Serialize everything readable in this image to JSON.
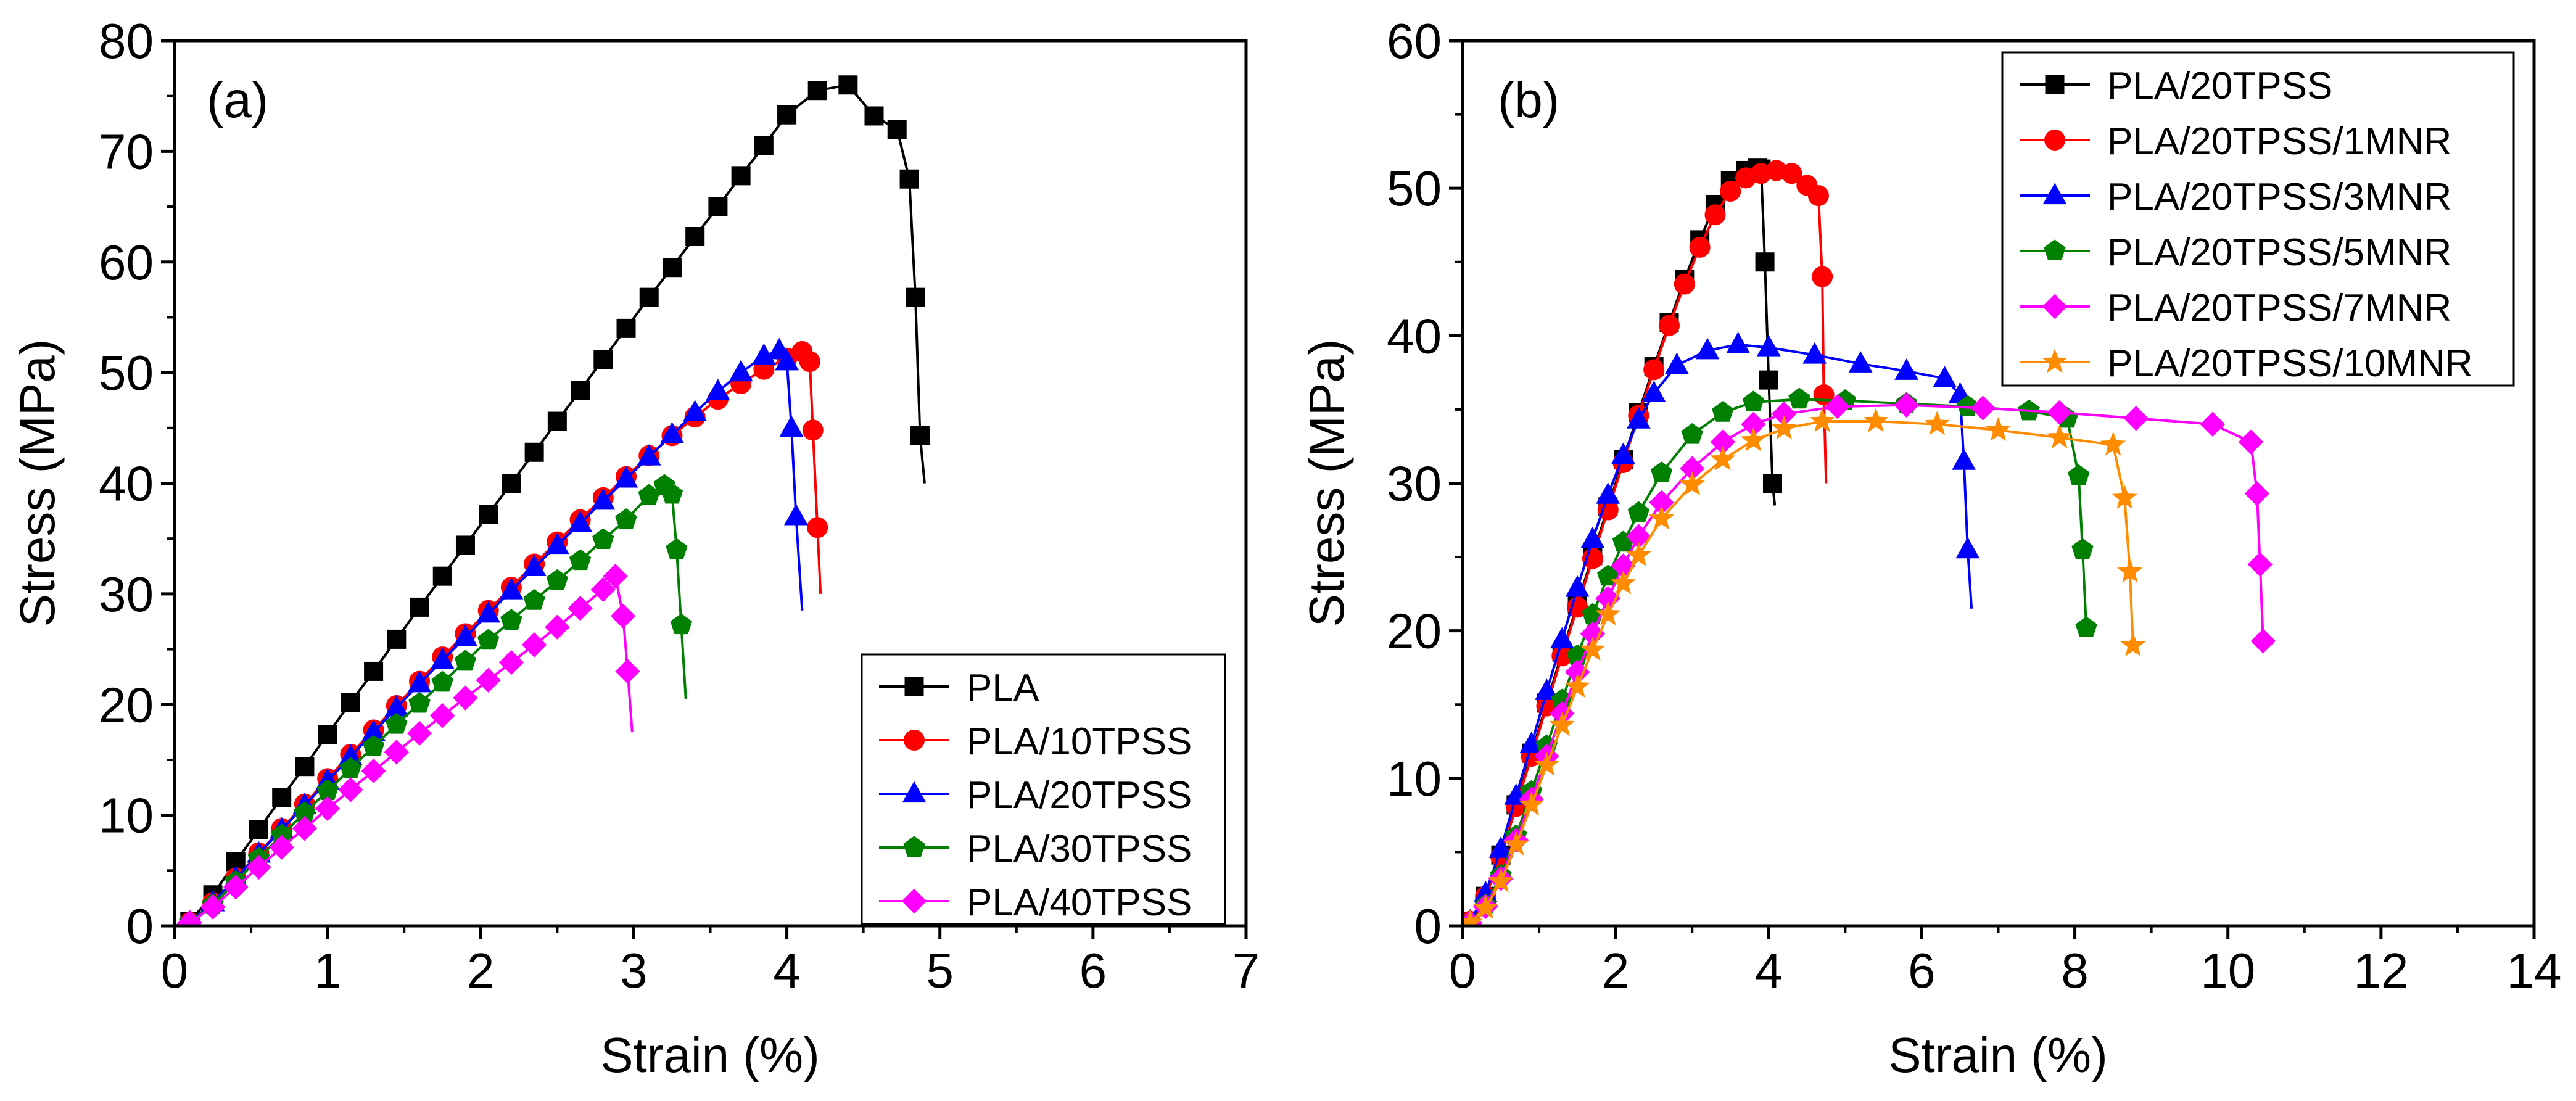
{
  "chart_data": [
    {
      "type": "line",
      "panel_label": "(a)",
      "xlabel": "Strain (%)",
      "ylabel": "Stress (MPa)",
      "xlim": [
        0,
        7
      ],
      "ylim": [
        0,
        80
      ],
      "xticks": [
        0,
        1,
        2,
        3,
        4,
        5,
        6,
        7
      ],
      "yticks": [
        0,
        10,
        20,
        30,
        40,
        50,
        60,
        70,
        80
      ],
      "legend_position": "bottom-right",
      "series": [
        {
          "name": "PLA",
          "color": "#000000",
          "marker": "square",
          "x": [
            0,
            0.1,
            0.25,
            0.4,
            0.55,
            0.7,
            0.85,
            1.0,
            1.15,
            1.3,
            1.45,
            1.6,
            1.75,
            1.9,
            2.05,
            2.2,
            2.35,
            2.5,
            2.65,
            2.8,
            2.95,
            3.1,
            3.25,
            3.4,
            3.55,
            3.7,
            3.85,
            4.0,
            4.2,
            4.4,
            4.57,
            4.72,
            4.8,
            4.84,
            4.87,
            4.9
          ],
          "y": [
            0,
            0.4,
            2.8,
            5.8,
            8.7,
            11.6,
            14.4,
            17.3,
            20.2,
            23.0,
            25.9,
            28.8,
            31.6,
            34.4,
            37.2,
            40.0,
            42.8,
            45.6,
            48.4,
            51.2,
            54.0,
            56.8,
            59.5,
            62.3,
            65.0,
            67.8,
            70.5,
            73.3,
            75.5,
            76.0,
            73.2,
            72.0,
            67.5,
            56.8,
            44.3,
            40.0
          ]
        },
        {
          "name": "PLA/10TPSS",
          "color": "#ff0000",
          "marker": "circle",
          "x": [
            0,
            0.1,
            0.25,
            0.4,
            0.55,
            0.7,
            0.85,
            1.0,
            1.15,
            1.3,
            1.45,
            1.6,
            1.75,
            1.9,
            2.05,
            2.2,
            2.35,
            2.5,
            2.65,
            2.8,
            2.95,
            3.1,
            3.25,
            3.4,
            3.55,
            3.7,
            3.85,
            4.0,
            4.1,
            4.15,
            4.17,
            4.2,
            4.22
          ],
          "y": [
            0,
            0.3,
            2.1,
            4.3,
            6.6,
            8.8,
            11.0,
            13.3,
            15.5,
            17.7,
            19.9,
            22.1,
            24.3,
            26.4,
            28.5,
            30.6,
            32.7,
            34.7,
            36.7,
            38.7,
            40.6,
            42.5,
            44.3,
            46.0,
            47.6,
            49.0,
            50.3,
            51.3,
            51.9,
            51.0,
            44.8,
            36.0,
            30.0
          ]
        },
        {
          "name": "PLA/20TPSS",
          "color": "#0000ff",
          "marker": "triangle",
          "x": [
            0,
            0.1,
            0.25,
            0.4,
            0.55,
            0.7,
            0.85,
            1.0,
            1.15,
            1.3,
            1.45,
            1.6,
            1.75,
            1.9,
            2.05,
            2.2,
            2.35,
            2.5,
            2.65,
            2.8,
            2.95,
            3.1,
            3.25,
            3.4,
            3.55,
            3.7,
            3.85,
            3.95,
            4.0,
            4.03,
            4.06,
            4.1
          ],
          "y": [
            0,
            0.3,
            2.1,
            4.3,
            6.5,
            8.7,
            10.9,
            13.1,
            15.3,
            17.5,
            19.7,
            21.9,
            24.0,
            26.1,
            28.2,
            30.3,
            32.4,
            34.4,
            36.4,
            38.4,
            40.4,
            42.4,
            44.4,
            46.4,
            48.3,
            50.0,
            51.5,
            52.0,
            51.0,
            45.0,
            37.0,
            28.5
          ]
        },
        {
          "name": "PLA/30TPSS",
          "color": "#008000",
          "marker": "pentagon",
          "x": [
            0,
            0.1,
            0.25,
            0.4,
            0.55,
            0.7,
            0.85,
            1.0,
            1.15,
            1.3,
            1.45,
            1.6,
            1.75,
            1.9,
            2.05,
            2.2,
            2.35,
            2.5,
            2.65,
            2.8,
            2.95,
            3.1,
            3.2,
            3.25,
            3.28,
            3.31,
            3.34
          ],
          "y": [
            0,
            0.3,
            1.9,
            4.0,
            6.1,
            8.2,
            10.2,
            12.2,
            14.2,
            16.2,
            18.2,
            20.1,
            22.0,
            23.9,
            25.8,
            27.6,
            29.4,
            31.2,
            33.0,
            34.9,
            36.7,
            38.9,
            39.8,
            39.0,
            34.0,
            27.2,
            20.5
          ]
        },
        {
          "name": "PLA/40TPSS",
          "color": "#ff00ff",
          "marker": "diamond",
          "x": [
            0,
            0.1,
            0.25,
            0.4,
            0.55,
            0.7,
            0.85,
            1.0,
            1.15,
            1.3,
            1.45,
            1.6,
            1.75,
            1.9,
            2.05,
            2.2,
            2.35,
            2.5,
            2.65,
            2.8,
            2.88,
            2.93,
            2.96,
            2.99
          ],
          "y": [
            0,
            0.3,
            1.7,
            3.5,
            5.3,
            7.1,
            8.8,
            10.6,
            12.3,
            14.0,
            15.7,
            17.4,
            19.0,
            20.6,
            22.2,
            23.8,
            25.4,
            27.0,
            28.7,
            30.4,
            31.6,
            28.0,
            23.0,
            17.5
          ]
        }
      ]
    },
    {
      "type": "line",
      "panel_label": "(b)",
      "xlabel": "Strain (%)",
      "ylabel": "Stress (MPa)",
      "xlim": [
        0,
        14
      ],
      "ylim": [
        0,
        60
      ],
      "xticks": [
        0,
        2,
        4,
        6,
        8,
        10,
        12,
        14
      ],
      "yticks": [
        0,
        10,
        20,
        30,
        40,
        50,
        60
      ],
      "legend_position": "top-right",
      "series": [
        {
          "name": "PLA/20TPSS",
          "color": "#000000",
          "marker": "square",
          "x": [
            0,
            0.1,
            0.3,
            0.5,
            0.7,
            0.9,
            1.1,
            1.3,
            1.5,
            1.7,
            1.9,
            2.1,
            2.3,
            2.5,
            2.7,
            2.9,
            3.1,
            3.3,
            3.5,
            3.7,
            3.85,
            3.9,
            3.95,
            4.0,
            4.05,
            4.08
          ],
          "y": [
            0,
            0.3,
            2.0,
            4.8,
            8.2,
            11.7,
            15.1,
            18.5,
            21.8,
            25.1,
            28.4,
            31.6,
            34.8,
            37.9,
            40.9,
            43.8,
            46.5,
            48.9,
            50.5,
            51.2,
            51.4,
            51.3,
            45.0,
            37.0,
            30.0,
            28.5
          ]
        },
        {
          "name": "PLA/20TPSS/1MNR",
          "color": "#ff0000",
          "marker": "circle",
          "x": [
            0,
            0.1,
            0.3,
            0.5,
            0.7,
            0.9,
            1.1,
            1.3,
            1.5,
            1.7,
            1.9,
            2.1,
            2.3,
            2.5,
            2.7,
            2.9,
            3.1,
            3.3,
            3.5,
            3.7,
            3.9,
            4.1,
            4.3,
            4.5,
            4.65,
            4.7,
            4.72,
            4.75
          ],
          "y": [
            0,
            0.3,
            2.0,
            4.7,
            8.1,
            11.5,
            14.9,
            18.3,
            21.6,
            24.9,
            28.2,
            31.4,
            34.6,
            37.7,
            40.7,
            43.5,
            46.0,
            48.2,
            49.8,
            50.7,
            51.0,
            51.2,
            51.0,
            50.2,
            49.5,
            44.0,
            36.0,
            30.0
          ]
        },
        {
          "name": "PLA/20TPSS/3MNR",
          "color": "#0000ff",
          "marker": "triangle",
          "x": [
            0,
            0.1,
            0.3,
            0.5,
            0.7,
            0.9,
            1.1,
            1.3,
            1.5,
            1.7,
            1.9,
            2.1,
            2.3,
            2.5,
            2.8,
            3.2,
            3.6,
            4.0,
            4.6,
            5.2,
            5.8,
            6.3,
            6.5,
            6.55,
            6.6,
            6.65
          ],
          "y": [
            0,
            0.3,
            2.2,
            5.2,
            8.8,
            12.3,
            15.9,
            19.4,
            22.9,
            26.2,
            29.2,
            31.9,
            34.3,
            36.1,
            38.0,
            39.0,
            39.4,
            39.2,
            38.7,
            38.1,
            37.6,
            37.1,
            36.0,
            31.5,
            25.5,
            21.5
          ]
        },
        {
          "name": "PLA/20TPSS/5MNR",
          "color": "#008000",
          "marker": "pentagon",
          "x": [
            0,
            0.1,
            0.3,
            0.5,
            0.7,
            0.9,
            1.1,
            1.3,
            1.5,
            1.7,
            1.9,
            2.1,
            2.3,
            2.6,
            3.0,
            3.4,
            3.8,
            4.4,
            5.0,
            5.8,
            6.6,
            7.4,
            7.9,
            8.05,
            8.1,
            8.15,
            8.2
          ],
          "y": [
            0,
            0.2,
            1.4,
            3.4,
            6.1,
            9.1,
            12.2,
            15.3,
            18.3,
            21.1,
            23.7,
            26.0,
            28.0,
            30.7,
            33.3,
            34.8,
            35.5,
            35.7,
            35.6,
            35.4,
            35.2,
            34.9,
            34.4,
            30.5,
            25.5,
            20.2,
            20.0
          ]
        },
        {
          "name": "PLA/20TPSS/7MNR",
          "color": "#ff00ff",
          "marker": "diamond",
          "x": [
            0,
            0.1,
            0.3,
            0.5,
            0.7,
            0.9,
            1.1,
            1.3,
            1.5,
            1.7,
            1.9,
            2.1,
            2.3,
            2.6,
            3.0,
            3.4,
            3.8,
            4.2,
            4.9,
            5.8,
            6.8,
            7.8,
            8.8,
            9.8,
            10.3,
            10.38,
            10.42,
            10.46,
            10.5
          ],
          "y": [
            0,
            0.2,
            1.3,
            3.2,
            5.8,
            8.6,
            11.5,
            14.4,
            17.2,
            19.8,
            22.2,
            24.4,
            26.4,
            28.7,
            31.0,
            32.8,
            34.0,
            34.7,
            35.2,
            35.3,
            35.1,
            34.8,
            34.4,
            34.0,
            32.8,
            29.3,
            24.5,
            19.3,
            19.0
          ]
        },
        {
          "name": "PLA/20TPSS/10MNR",
          "color": "#ff8c00",
          "marker": "star",
          "x": [
            0,
            0.1,
            0.3,
            0.5,
            0.7,
            0.9,
            1.1,
            1.3,
            1.5,
            1.7,
            1.9,
            2.1,
            2.3,
            2.6,
            3.0,
            3.4,
            3.8,
            4.2,
            4.7,
            5.4,
            6.2,
            7.0,
            7.8,
            8.5,
            8.65,
            8.72,
            8.76,
            8.8
          ],
          "y": [
            0,
            0.2,
            1.2,
            3.0,
            5.5,
            8.2,
            10.9,
            13.6,
            16.2,
            18.7,
            21.1,
            23.2,
            25.1,
            27.6,
            29.9,
            31.6,
            32.9,
            33.7,
            34.2,
            34.2,
            34.0,
            33.6,
            33.1,
            32.6,
            29.0,
            24.0,
            19.0,
            18.5
          ]
        }
      ]
    }
  ]
}
